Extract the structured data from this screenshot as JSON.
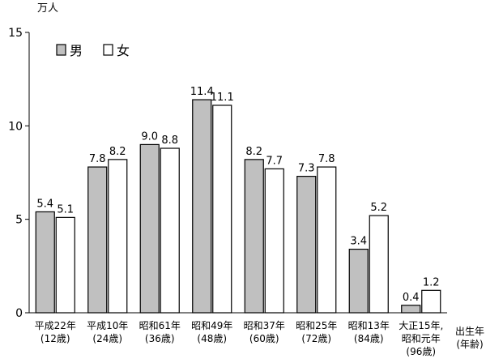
{
  "chart_data": {
    "type": "bar",
    "unit_label": "万人",
    "ylim": [
      0,
      15
    ],
    "yticks": [
      0,
      5,
      10,
      15
    ],
    "grid": false,
    "legend_position": "top-left",
    "categories": [
      [
        "平成22年",
        "(12歳)"
      ],
      [
        "平成10年",
        "(24歳)"
      ],
      [
        "昭和61年",
        "(36歳)"
      ],
      [
        "昭和49年",
        "(48歳)"
      ],
      [
        "昭和37年",
        "(60歳)"
      ],
      [
        "昭和25年",
        "(72歳)"
      ],
      [
        "昭和13年",
        "(84歳)"
      ],
      [
        "大正15年,",
        "昭和元年",
        "(96歳)"
      ]
    ],
    "xaxis_label": [
      "出生年",
      "(年齢)"
    ],
    "series": [
      {
        "name": "男",
        "color": "#c0c0c0",
        "values": [
          5.4,
          7.8,
          9.0,
          11.4,
          8.2,
          7.3,
          3.4,
          0.4
        ],
        "labels": [
          "5.4",
          "7.8",
          "9.0",
          "11.4",
          "8.2",
          "7.3",
          "3.4",
          "0.4"
        ]
      },
      {
        "name": "女",
        "color": "#ffffff",
        "values": [
          5.1,
          8.2,
          8.8,
          11.1,
          7.7,
          7.8,
          5.2,
          1.2
        ],
        "labels": [
          "5.1",
          "8.2",
          "8.8",
          "11.1",
          "7.7",
          "7.8",
          "5.2",
          "1.2"
        ]
      }
    ]
  }
}
